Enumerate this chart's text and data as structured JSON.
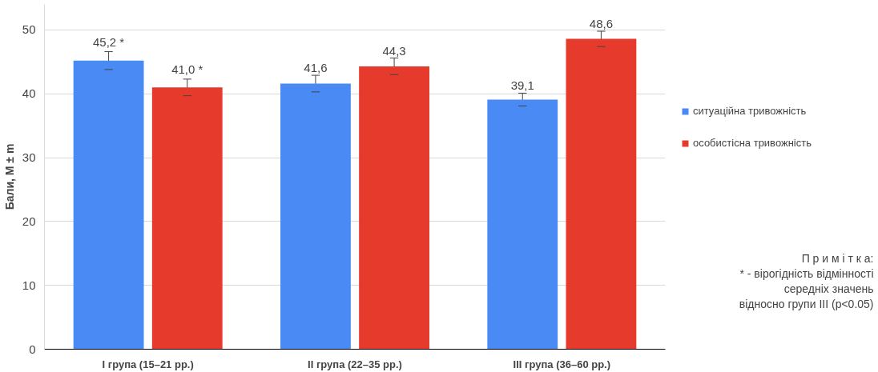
{
  "chart_data": {
    "type": "bar",
    "ylabel": "Бали, M ± m",
    "categories": [
      "I група (15–21 рр.)",
      "II група (22–35 рр.)",
      "III група (36–60 рр.)"
    ],
    "series": [
      {
        "name": "ситуаційна тривожність",
        "color": "#4a8af4",
        "values": [
          45.2,
          41.6,
          39.1
        ],
        "errors": [
          1.4,
          1.3,
          1.0
        ],
        "value_labels": [
          "45,2 *",
          "41,6",
          "39,1"
        ]
      },
      {
        "name": "особистісна тривожність",
        "color": "#e63a2c",
        "values": [
          41.0,
          44.3,
          48.6
        ],
        "errors": [
          1.3,
          1.3,
          1.2
        ],
        "value_labels": [
          "41,0 *",
          "44,3",
          "48,6"
        ]
      }
    ],
    "ylim": [
      0,
      54
    ],
    "yticks": [
      0,
      10,
      20,
      30,
      40,
      50
    ],
    "grid": "y",
    "legend": "right",
    "annotations": [
      "П р и м і т к а:",
      "* - вірогідність відмінності\nсередніх значень\nвідносно групи III (p<0.05)"
    ]
  }
}
